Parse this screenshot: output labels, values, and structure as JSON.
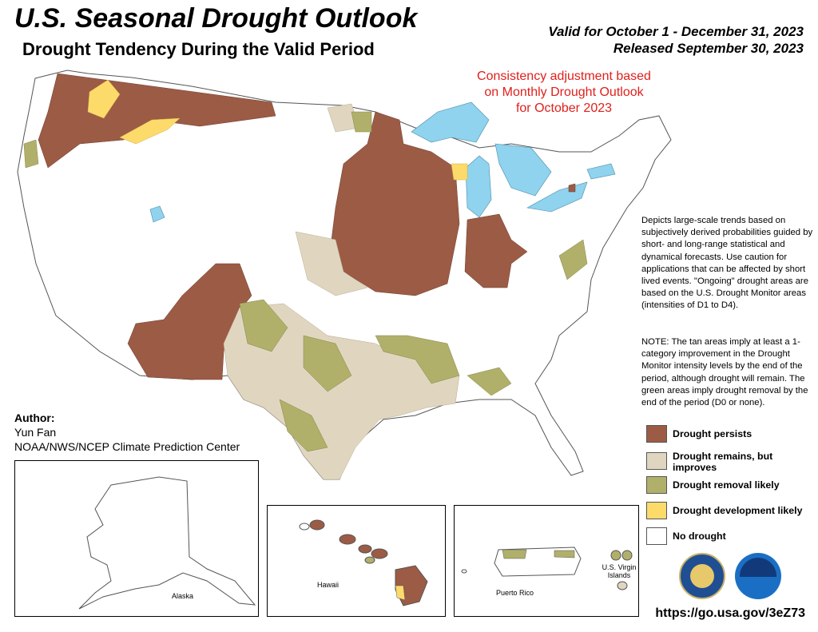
{
  "header": {
    "title": "U.S. Seasonal Drought Outlook",
    "subtitle": "Drought Tendency During the Valid Period",
    "valid": "Valid for October 1 - December 31, 2023",
    "released": "Released September 30, 2023"
  },
  "consistency_note": "Consistency adjustment based on Monthly Drought Outlook for October 2023",
  "description": "Depicts large-scale trends based on subjectively derived probabilities guided by short- and long-range statistical and dynamical forecasts. Use caution for applications that can be affected by short lived events. \"Ongoing\" drought areas are based on the U.S. Drought Monitor areas (intensities of D1 to D4).",
  "note": "NOTE: The tan areas imply at least a 1-category improvement in the Drought Monitor intensity levels by the end of the period, although drought will remain. The green areas imply drought removal by the end of the period (D0 or none).",
  "author": {
    "heading": "Author:",
    "name": "Yun Fan",
    "org": "NOAA/NWS/NCEP Climate Prediction Center"
  },
  "legend": [
    {
      "label": "Drought persists",
      "color": "#9c5b45"
    },
    {
      "label": "Drought remains, but improves",
      "color": "#e0d6c0"
    },
    {
      "label": "Drought removal likely",
      "color": "#b1b06a"
    },
    {
      "label": "Drought development likely",
      "color": "#fddb6b"
    },
    {
      "label": "No drought",
      "color": "#ffffff"
    }
  ],
  "insets": {
    "alaska": "Alaska",
    "hawaii": "Hawaii",
    "puerto_rico": "Puerto Rico",
    "usvi": "U.S. Virgin Islands"
  },
  "logos": [
    "noaa-logo",
    "commerce-seal"
  ],
  "url": "https://go.usa.gov/3eZ73",
  "colors": {
    "persists": "#9c5b45",
    "improves": "#e0d6c0",
    "removal": "#b1b06a",
    "development": "#fddb6b",
    "water": "#8fd3ee",
    "consistency_text": "#e0201c"
  }
}
